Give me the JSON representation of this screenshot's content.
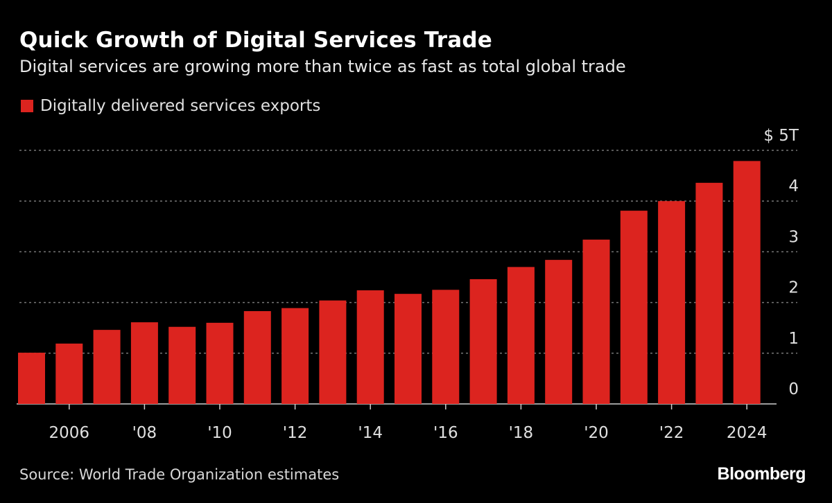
{
  "chart_data": {
    "type": "bar",
    "title": "Quick Growth of Digital Services Trade",
    "subtitle": "Digital services are growing more than twice as fast as total global trade",
    "legend": [
      {
        "name": "Digitally delivered services exports",
        "color": "#dc241f"
      }
    ],
    "legend_placement": "top-left",
    "categories": [
      "2005",
      "2006",
      "2007",
      "2008",
      "2009",
      "2010",
      "2011",
      "2012",
      "2013",
      "2014",
      "2015",
      "2016",
      "2017",
      "2018",
      "2019",
      "2020",
      "2021",
      "2022",
      "2023",
      "2024"
    ],
    "series": [
      {
        "name": "Digitally delivered services exports",
        "values": [
          1.01,
          1.19,
          1.46,
          1.61,
          1.52,
          1.6,
          1.83,
          1.89,
          2.04,
          2.24,
          2.17,
          2.25,
          2.46,
          2.7,
          2.84,
          3.24,
          3.81,
          4.0,
          4.36,
          4.79
        ]
      }
    ],
    "x_tick_labels": [
      {
        "year": "2006",
        "label": "2006"
      },
      {
        "year": "2008",
        "label": "'08"
      },
      {
        "year": "2010",
        "label": "'10"
      },
      {
        "year": "2012",
        "label": "'12"
      },
      {
        "year": "2014",
        "label": "'14"
      },
      {
        "year": "2016",
        "label": "'16"
      },
      {
        "year": "2018",
        "label": "'18"
      },
      {
        "year": "2020",
        "label": "'20"
      },
      {
        "year": "2022",
        "label": "'22"
      },
      {
        "year": "2024",
        "label": "2024"
      }
    ],
    "y_ticks": [
      {
        "value": 0,
        "label": "0"
      },
      {
        "value": 1,
        "label": "1"
      },
      {
        "value": 2,
        "label": "2"
      },
      {
        "value": 3,
        "label": "3"
      },
      {
        "value": 4,
        "label": "4"
      },
      {
        "value": 5,
        "label": "$ 5T"
      }
    ],
    "ylabel": "",
    "ylim": [
      0,
      5
    ],
    "y_axis_position": "right",
    "grid": true,
    "bar_color": "#dc241f",
    "background": "#000000"
  },
  "footer": {
    "source": "Source: World Trade Organization estimates",
    "logo": "Bloomberg"
  }
}
